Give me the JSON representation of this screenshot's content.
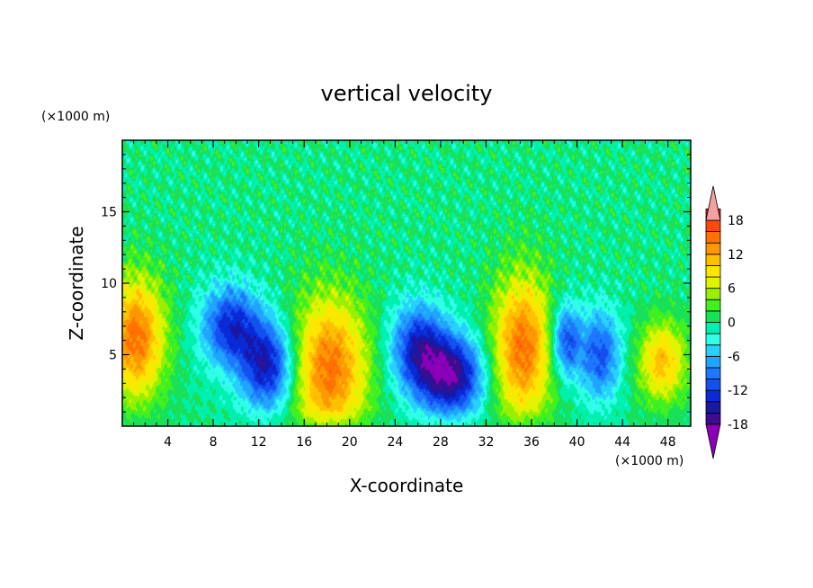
{
  "chart_data": {
    "type": "heatmap",
    "title": "vertical velocity",
    "xlabel": "X-coordinate",
    "ylabel": "Z-coordinate",
    "x_units": "(×1000 m)",
    "y_units": "(×1000 m)",
    "xlim": [
      0,
      50
    ],
    "ylim": [
      0,
      20
    ],
    "x_ticks": [
      4,
      8,
      12,
      16,
      20,
      24,
      28,
      32,
      36,
      40,
      44,
      48
    ],
    "y_ticks": [
      5,
      10,
      15
    ],
    "grid": false,
    "colorbar": {
      "placement": "right",
      "levels": [
        -20,
        -18,
        -16,
        -14,
        -12,
        -10,
        -8,
        -6,
        -4,
        -2,
        0,
        2,
        4,
        6,
        8,
        10,
        12,
        14,
        16,
        18,
        20
      ],
      "tick_labels": [
        18,
        12,
        6,
        0,
        -6,
        -12,
        -18
      ],
      "colors": [
        "#8a00b8",
        "#3b0e8e",
        "#1818a8",
        "#0a2ad8",
        "#1450f0",
        "#1e78ff",
        "#20a4ff",
        "#28d0ff",
        "#30ffe8",
        "#00f0b0",
        "#18e058",
        "#40f020",
        "#98f000",
        "#e0f400",
        "#ffe600",
        "#ffc000",
        "#ff9800",
        "#ff7200",
        "#ff4810",
        "#f01818",
        "#f4a0a0"
      ],
      "extend": "both"
    },
    "features": [
      {
        "kind": "updraft",
        "x": 1.2,
        "z": 6.2,
        "sx": 1.8,
        "sz": 3.0,
        "value": 15
      },
      {
        "kind": "downdraft",
        "x": 9.5,
        "z": 7.0,
        "sx": 1.8,
        "sz": 2.0,
        "value": -13
      },
      {
        "kind": "downdraft",
        "x": 12.8,
        "z": 4.2,
        "sx": 1.7,
        "sz": 2.2,
        "value": -15
      },
      {
        "kind": "updraft",
        "x": 18.2,
        "z": 4.0,
        "sx": 2.4,
        "sz": 3.6,
        "value": 15
      },
      {
        "kind": "downdraft",
        "x": 26.0,
        "z": 5.5,
        "sx": 1.7,
        "sz": 2.2,
        "value": -13
      },
      {
        "kind": "downdraft",
        "x": 29.0,
        "z": 3.5,
        "sx": 2.0,
        "sz": 2.0,
        "value": -17
      },
      {
        "kind": "updraft",
        "x": 35.2,
        "z": 5.5,
        "sx": 1.9,
        "sz": 3.6,
        "value": 15
      },
      {
        "kind": "downdraft",
        "x": 39.0,
        "z": 6.0,
        "sx": 0.9,
        "sz": 1.8,
        "value": -12
      },
      {
        "kind": "downdraft",
        "x": 42.0,
        "z": 5.0,
        "sx": 1.3,
        "sz": 2.2,
        "value": -11
      },
      {
        "kind": "updraft",
        "x": 47.5,
        "z": 4.5,
        "sx": 1.5,
        "sz": 2.0,
        "value": 11
      }
    ]
  }
}
